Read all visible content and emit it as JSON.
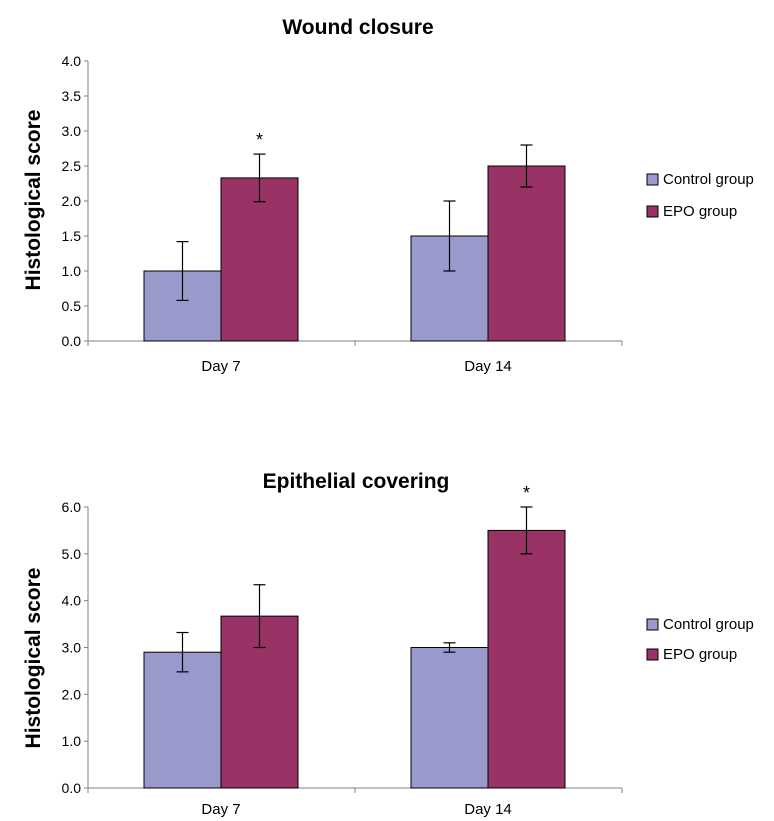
{
  "chart_data": [
    {
      "type": "bar",
      "title": "Wound closure",
      "xlabel": "",
      "ylabel": "Histological score",
      "ylim": [
        0,
        4.0
      ],
      "yticks": [
        "0.0",
        "0.5",
        "1.0",
        "1.5",
        "2.0",
        "2.5",
        "3.0",
        "3.5",
        "4.0"
      ],
      "categories": [
        "Day 7",
        "Day 14"
      ],
      "series": [
        {
          "name": "Control group",
          "color": "#9999cc",
          "values": [
            1.0,
            1.5
          ],
          "errors": [
            0.42,
            0.5
          ]
        },
        {
          "name": "EPO group",
          "color": "#993366",
          "values": [
            2.33,
            2.5
          ],
          "errors": [
            0.34,
            0.3
          ]
        }
      ],
      "annotations": [
        {
          "category": "Day 7",
          "series": "EPO group",
          "text": "*"
        }
      ],
      "legend": "right",
      "grid": false
    },
    {
      "type": "bar",
      "title": "Epithelial covering",
      "xlabel": "",
      "ylabel": "Histological score",
      "ylim": [
        0,
        6.0
      ],
      "yticks": [
        "0.0",
        "1.0",
        "2.0",
        "3.0",
        "4.0",
        "5.0",
        "6.0"
      ],
      "categories": [
        "Day 7",
        "Day 14"
      ],
      "series": [
        {
          "name": "Control group",
          "color": "#9999cc",
          "values": [
            2.9,
            3.0
          ],
          "errors": [
            0.42,
            0.1
          ]
        },
        {
          "name": "EPO group",
          "color": "#993366",
          "values": [
            3.67,
            5.5
          ],
          "errors": [
            0.67,
            0.5
          ]
        }
      ],
      "annotations": [
        {
          "category": "Day 14",
          "series": "EPO group",
          "text": "*"
        }
      ],
      "legend": "right",
      "grid": false
    }
  ]
}
